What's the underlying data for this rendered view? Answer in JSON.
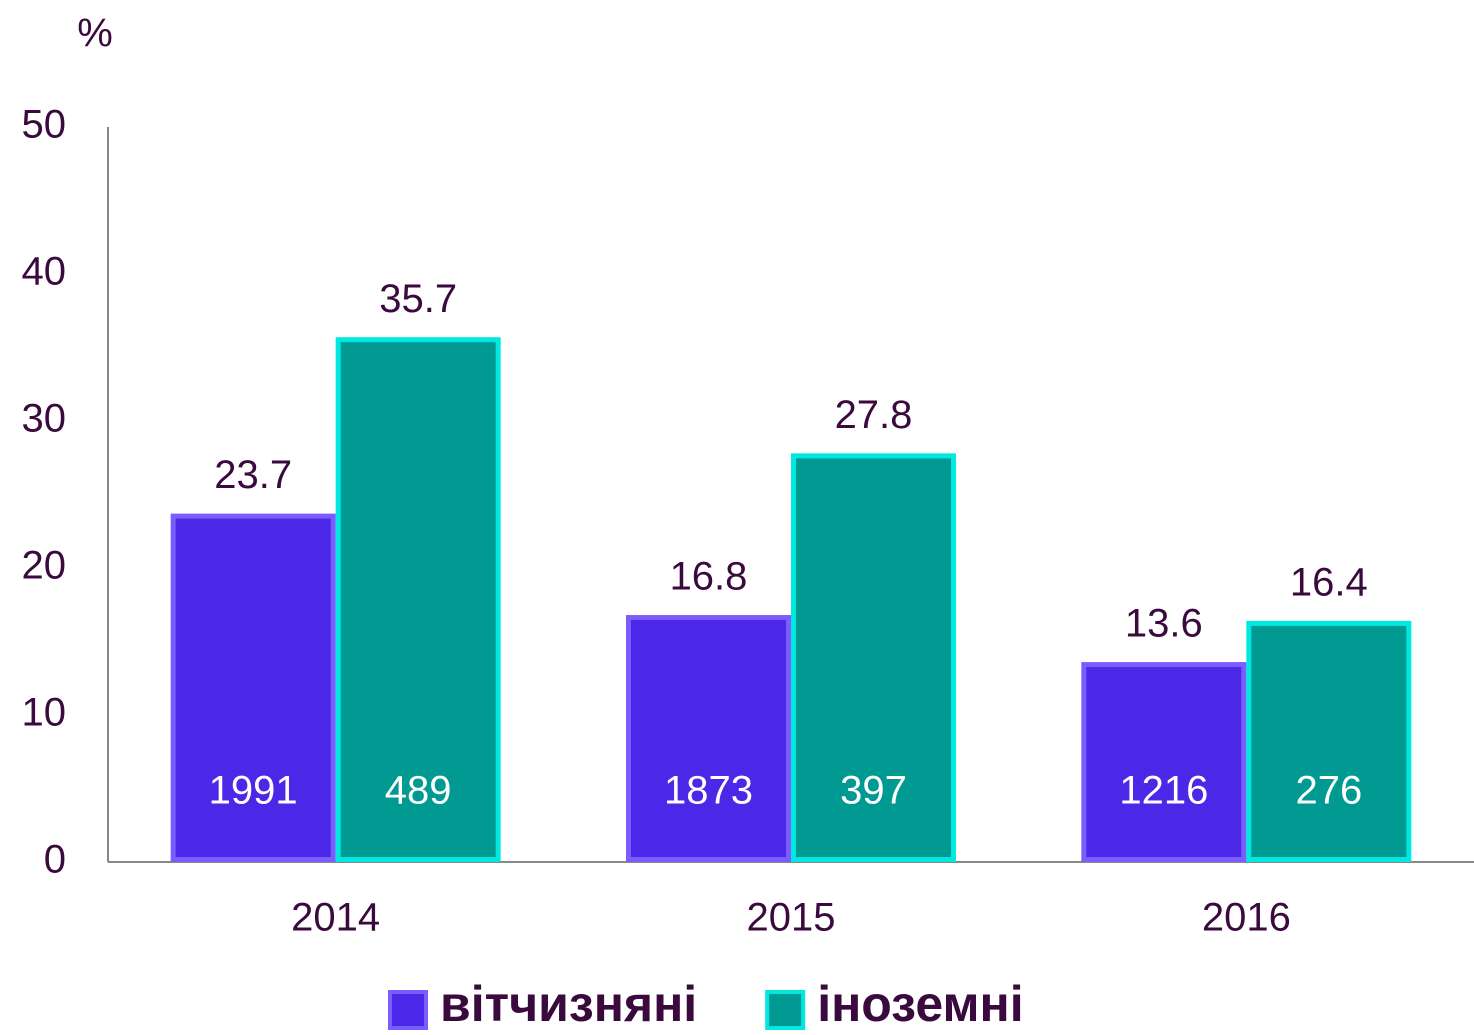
{
  "chart_data": {
    "type": "bar",
    "y_label": "%",
    "categories": [
      "2014",
      "2015",
      "2016"
    ],
    "series": [
      {
        "name": "вітчизняні",
        "color": "#4b28e8",
        "border": "#7b5cff",
        "values": [
          23.7,
          16.8,
          13.6
        ],
        "counts": [
          1991,
          1873,
          1216
        ]
      },
      {
        "name": "іноземні",
        "color": "#009a92",
        "border": "#00e8e0",
        "values": [
          35.7,
          27.8,
          16.4
        ],
        "counts": [
          489,
          397,
          276
        ]
      }
    ],
    "ylim": [
      0,
      50
    ],
    "yticks": [
      0,
      10,
      20,
      30,
      40,
      50
    ],
    "grid": false,
    "legend": "bottom"
  }
}
